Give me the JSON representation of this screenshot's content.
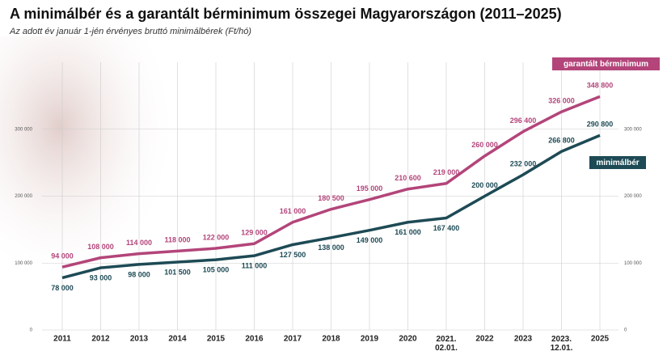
{
  "chart_data": {
    "type": "line",
    "title": "A minimálbér és a garantált bérminimum összegei Magyarországon (2011–2025)",
    "subtitle": "Az adott év január 1-jén érvényes bruttó minimálbérek (Ft/hó)",
    "categories": [
      "2011",
      "2012",
      "2013",
      "2014",
      "2015",
      "2016",
      "2017",
      "2018",
      "2019",
      "2020",
      "2021.\n02.01.",
      "2022",
      "2023",
      "2023.\n12.01.",
      "2025"
    ],
    "series": [
      {
        "name": "garantált bérminimum",
        "color": "#b3457a",
        "values": [
          94000,
          108000,
          114000,
          118000,
          122000,
          129000,
          161000,
          180500,
          195000,
          210600,
          219000,
          260000,
          296400,
          326000,
          348800
        ],
        "value_labels": [
          "94 000",
          "108 000",
          "114 000",
          "118 000",
          "122 000",
          "129 000",
          "161 000",
          "180 500",
          "195 000",
          "210 600",
          "219 000",
          "260 000",
          "296 400",
          "326 000",
          "348 800"
        ]
      },
      {
        "name": "minimálbér",
        "color": "#1d4a55",
        "values": [
          78000,
          93000,
          98000,
          101500,
          105000,
          111000,
          127500,
          138000,
          149000,
          161000,
          167400,
          200000,
          232000,
          266800,
          290800
        ],
        "value_labels": [
          "78 000",
          "93 000",
          "98 000",
          "101 500",
          "105 000",
          "111 000",
          "127 500",
          "138 000",
          "149 000",
          "161 000",
          "167 400",
          "200 000",
          "232 000",
          "266 800",
          "290 800"
        ]
      }
    ],
    "ylim": [
      0,
      400000
    ],
    "yticks": [
      0,
      {
        "value": 100000,
        "label": "100 000"
      },
      {
        "value": 200000,
        "label": "200 000"
      },
      {
        "value": 300000,
        "label": "300 000"
      }
    ],
    "grid": true
  }
}
